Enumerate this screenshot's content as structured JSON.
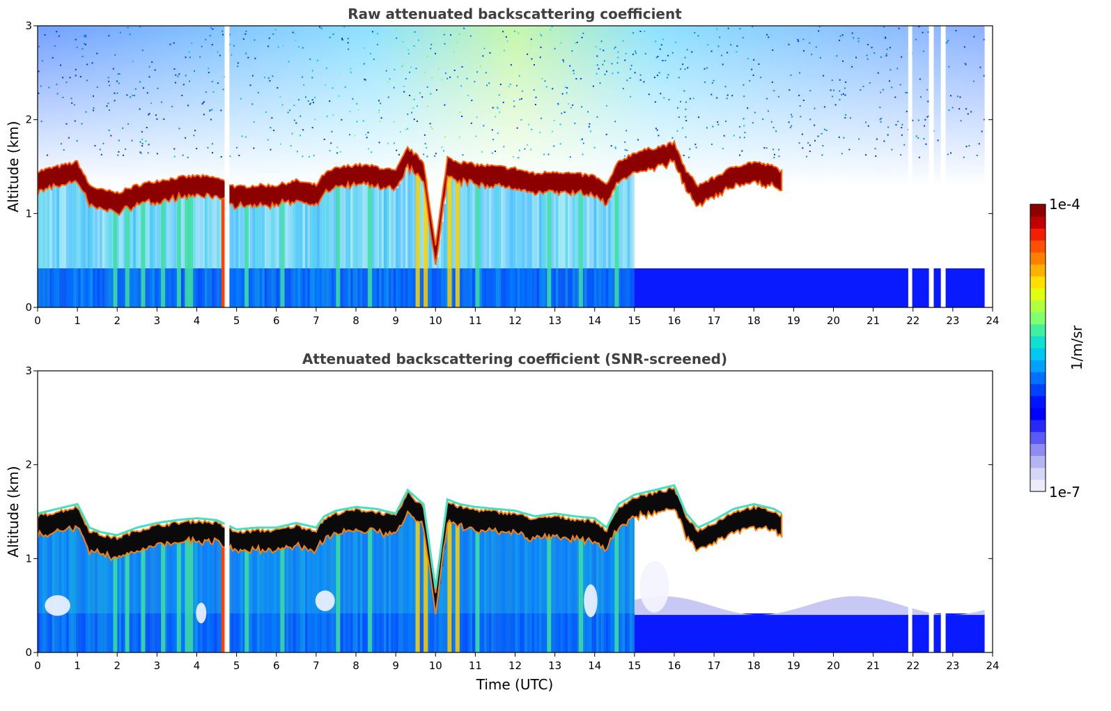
{
  "colorbar": {
    "max_label": "1e-4",
    "min_label": "1e-7",
    "unit": "1/m/sr",
    "colors": [
      "#ececfa",
      "#d6d6f6",
      "#b4b4f0",
      "#8c8cf2",
      "#5a5af4",
      "#2828f8",
      "#0000ff",
      "#0014ff",
      "#0040ff",
      "#0070ff",
      "#00a0ff",
      "#00c8f0",
      "#10e0d0",
      "#40f0a0",
      "#80ff70",
      "#b0ff40",
      "#e0ff10",
      "#ffe000",
      "#ffb000",
      "#ff8000",
      "#ff5000",
      "#f02000",
      "#c00000",
      "#8c0000"
    ]
  },
  "chart_data": [
    {
      "type": "heatmap",
      "title": "Raw attenuated backscattering coefficient",
      "xlabel": "",
      "ylabel": "Altitude (km)",
      "xlim": [
        0,
        24
      ],
      "ylim": [
        0,
        3
      ],
      "xticks": [
        "0",
        "1",
        "2",
        "3",
        "4",
        "5",
        "6",
        "7",
        "8",
        "9",
        "10",
        "11",
        "12",
        "13",
        "14",
        "15",
        "16",
        "17",
        "18",
        "19",
        "20",
        "21",
        "22",
        "23",
        "24"
      ],
      "yticks": [
        "0",
        "1",
        "2",
        "3"
      ],
      "colorscale": "log",
      "crange": [
        1e-07,
        0.0001
      ],
      "cloud_layer_top_km": {
        "time_utc": [
          0,
          0.5,
          1,
          1.3,
          1.6,
          2,
          2.5,
          3,
          3.5,
          4,
          4.5,
          5,
          5.5,
          6,
          6.5,
          7,
          7.2,
          7.5,
          8,
          8.5,
          9,
          9.3,
          9.7,
          10,
          10.3,
          10.6,
          11,
          11.5,
          12,
          12.5,
          13,
          13.5,
          14,
          14.3,
          14.6,
          15,
          15.5,
          16,
          16.3,
          16.6,
          17,
          17.5,
          18,
          18.5,
          18.7
        ],
        "altitude_km": [
          1.45,
          1.5,
          1.55,
          1.3,
          1.25,
          1.22,
          1.3,
          1.35,
          1.38,
          1.4,
          1.38,
          1.28,
          1.3,
          1.3,
          1.35,
          1.3,
          1.42,
          1.48,
          1.52,
          1.5,
          1.45,
          1.7,
          1.55,
          0.65,
          1.6,
          1.55,
          1.52,
          1.5,
          1.48,
          1.42,
          1.45,
          1.42,
          1.4,
          1.3,
          1.55,
          1.65,
          1.7,
          1.75,
          1.45,
          1.3,
          1.38,
          1.5,
          1.55,
          1.5,
          1.45
        ]
      }
    },
    {
      "type": "heatmap",
      "title": "Attenuated backscattering coefficient (SNR-screened)",
      "xlabel": "Time (UTC)",
      "ylabel": "Altitude (km)",
      "xlim": [
        0,
        24
      ],
      "ylim": [
        0,
        3
      ],
      "xticks": [
        "0",
        "1",
        "2",
        "3",
        "4",
        "5",
        "6",
        "7",
        "8",
        "9",
        "10",
        "11",
        "12",
        "13",
        "14",
        "15",
        "16",
        "17",
        "18",
        "19",
        "20",
        "21",
        "22",
        "23",
        "24"
      ],
      "yticks": [
        "0",
        "1",
        "2",
        "3"
      ],
      "colorscale": "log",
      "crange": [
        1e-07,
        0.0001
      ]
    }
  ]
}
